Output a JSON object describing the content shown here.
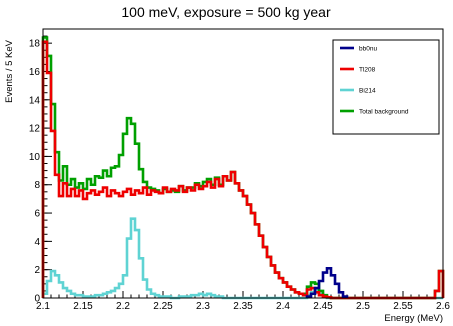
{
  "chart_data": {
    "type": "line",
    "title": "100 meV, exposure = 500 kg year",
    "xlabel": "Energy (MeV)",
    "ylabel": "Events / 5 KeV",
    "xlim": [
      2.1,
      2.6
    ],
    "ylim": [
      0,
      19
    ],
    "x_ticks": [
      "2.1",
      "2.15",
      "2.2",
      "2.25",
      "2.3",
      "2.35",
      "2.4",
      "2.45",
      "2.5",
      "2.55",
      "2.6"
    ],
    "y_ticks": [
      "0",
      "2",
      "4",
      "6",
      "8",
      "10",
      "12",
      "14",
      "16",
      "18"
    ],
    "bin_width": 0.005,
    "legend_position": "top-right",
    "grid": false,
    "series": [
      {
        "name": "bb0nu",
        "color": "#00008b",
        "x_start": 2.43,
        "values": [
          0.1,
          0.3,
          0.7,
          1.2,
          1.8,
          2.1,
          1.6,
          1.0,
          0.4,
          0.1
        ]
      },
      {
        "name": "Tl208",
        "color": "#ee0000",
        "x_start": 2.1,
        "values": [
          18.1,
          15.9,
          11.8,
          8.7,
          7.2,
          8.1,
          7.2,
          7.7,
          7.2,
          7.6,
          7.0,
          7.4,
          7.6,
          7.3,
          7.5,
          7.8,
          7.2,
          7.6,
          7.4,
          7.2,
          7.5,
          7.7,
          7.3,
          7.6,
          7.4,
          7.8,
          7.3,
          7.6,
          7.5,
          7.4,
          7.8,
          7.5,
          7.7,
          7.6,
          7.9,
          7.5,
          7.8,
          7.6,
          8.0,
          7.7,
          7.9,
          8.2,
          7.8,
          8.4,
          7.9,
          8.6,
          8.3,
          8.9,
          8.1,
          7.6,
          7.2,
          6.6,
          6.0,
          5.2,
          4.4,
          3.6,
          2.9,
          2.3,
          1.8,
          1.4,
          1.1,
          0.8,
          0.6,
          0.4,
          0.3,
          0.2,
          0.6,
          0.7,
          0.4,
          0.2,
          0.1,
          0.05,
          0.0,
          0.0,
          0.0,
          0.0,
          0.0,
          0.0,
          0.0,
          0.0,
          0.0,
          0.0,
          0.0,
          0.0,
          0.0,
          0.0,
          0.0,
          0.0,
          0.0,
          0.0,
          0.0,
          0.0,
          0.0,
          0.0,
          0.0,
          0.0,
          0.0,
          0.0,
          0.5,
          1.9
        ]
      },
      {
        "name": "Bi214",
        "color": "#5fd3d3",
        "x_start": 2.1,
        "values": [
          0.3,
          1.2,
          1.9,
          1.6,
          1.1,
          0.7,
          0.5,
          0.3,
          0.2,
          0.2,
          0.1,
          0.1,
          0.1,
          0.2,
          0.2,
          0.3,
          0.4,
          0.5,
          0.7,
          1.0,
          1.6,
          4.2,
          5.6,
          4.8,
          2.8,
          1.3,
          0.6,
          0.3,
          0.2,
          0.1,
          0.1,
          0.1,
          0.0,
          0.0,
          0.1,
          0.1,
          0.1,
          0.2,
          0.2,
          0.3,
          0.2,
          0.3,
          0.2,
          0.1,
          0.1,
          0.0,
          0.0,
          0.0,
          0.0,
          0.0,
          0.0,
          0.0,
          0.0,
          0.0,
          0.0,
          0.0,
          0.0,
          0.0,
          0.0,
          0.0,
          0.0,
          0.0,
          0.0,
          0.0,
          0.0,
          0.0,
          0.2,
          0.4,
          0.6,
          0.3,
          0.1,
          0.0,
          0.0,
          0.0,
          0.0,
          0.0,
          0.0,
          0.0,
          0.0,
          0.0,
          0.0,
          0.0,
          0.0,
          0.0,
          0.0,
          0.0,
          0.0,
          0.0,
          0.0,
          0.0,
          0.0,
          0.0,
          0.0,
          0.0,
          0.0,
          0.0,
          0.0,
          0.0,
          0.0,
          0.0
        ]
      },
      {
        "name": "Total background",
        "color": "#00a000",
        "x_start": 2.1,
        "values": [
          18.4,
          17.1,
          13.7,
          10.3,
          8.3,
          9.3,
          8.0,
          8.4,
          7.8,
          8.1,
          7.7,
          8.4,
          8.0,
          8.6,
          8.5,
          9.0,
          8.6,
          9.2,
          9.3,
          10.1,
          11.6,
          12.7,
          12.3,
          10.9,
          9.1,
          8.2,
          7.8,
          7.7,
          7.6,
          7.4,
          7.7,
          7.5,
          7.6,
          7.5,
          7.9,
          7.6,
          7.8,
          7.8,
          8.1,
          7.9,
          8.2,
          8.4,
          8.0,
          8.5,
          8.0,
          8.6,
          8.3,
          8.9,
          8.1,
          7.6,
          7.2,
          6.6,
          6.0,
          5.2,
          4.4,
          3.6,
          2.9,
          2.3,
          1.8,
          1.4,
          1.1,
          0.8,
          0.6,
          0.4,
          0.3,
          0.3,
          0.8,
          1.1,
          1.0,
          0.5,
          0.2,
          0.05,
          0.0,
          0.0,
          0.0,
          0.0,
          0.0,
          0.0,
          0.0,
          0.0,
          0.0,
          0.0,
          0.0,
          0.0,
          0.0,
          0.0,
          0.0,
          0.0,
          0.0,
          0.0,
          0.0,
          0.0,
          0.0,
          0.0,
          0.0,
          0.0,
          0.0,
          0.0,
          0.5,
          1.9
        ]
      }
    ]
  }
}
